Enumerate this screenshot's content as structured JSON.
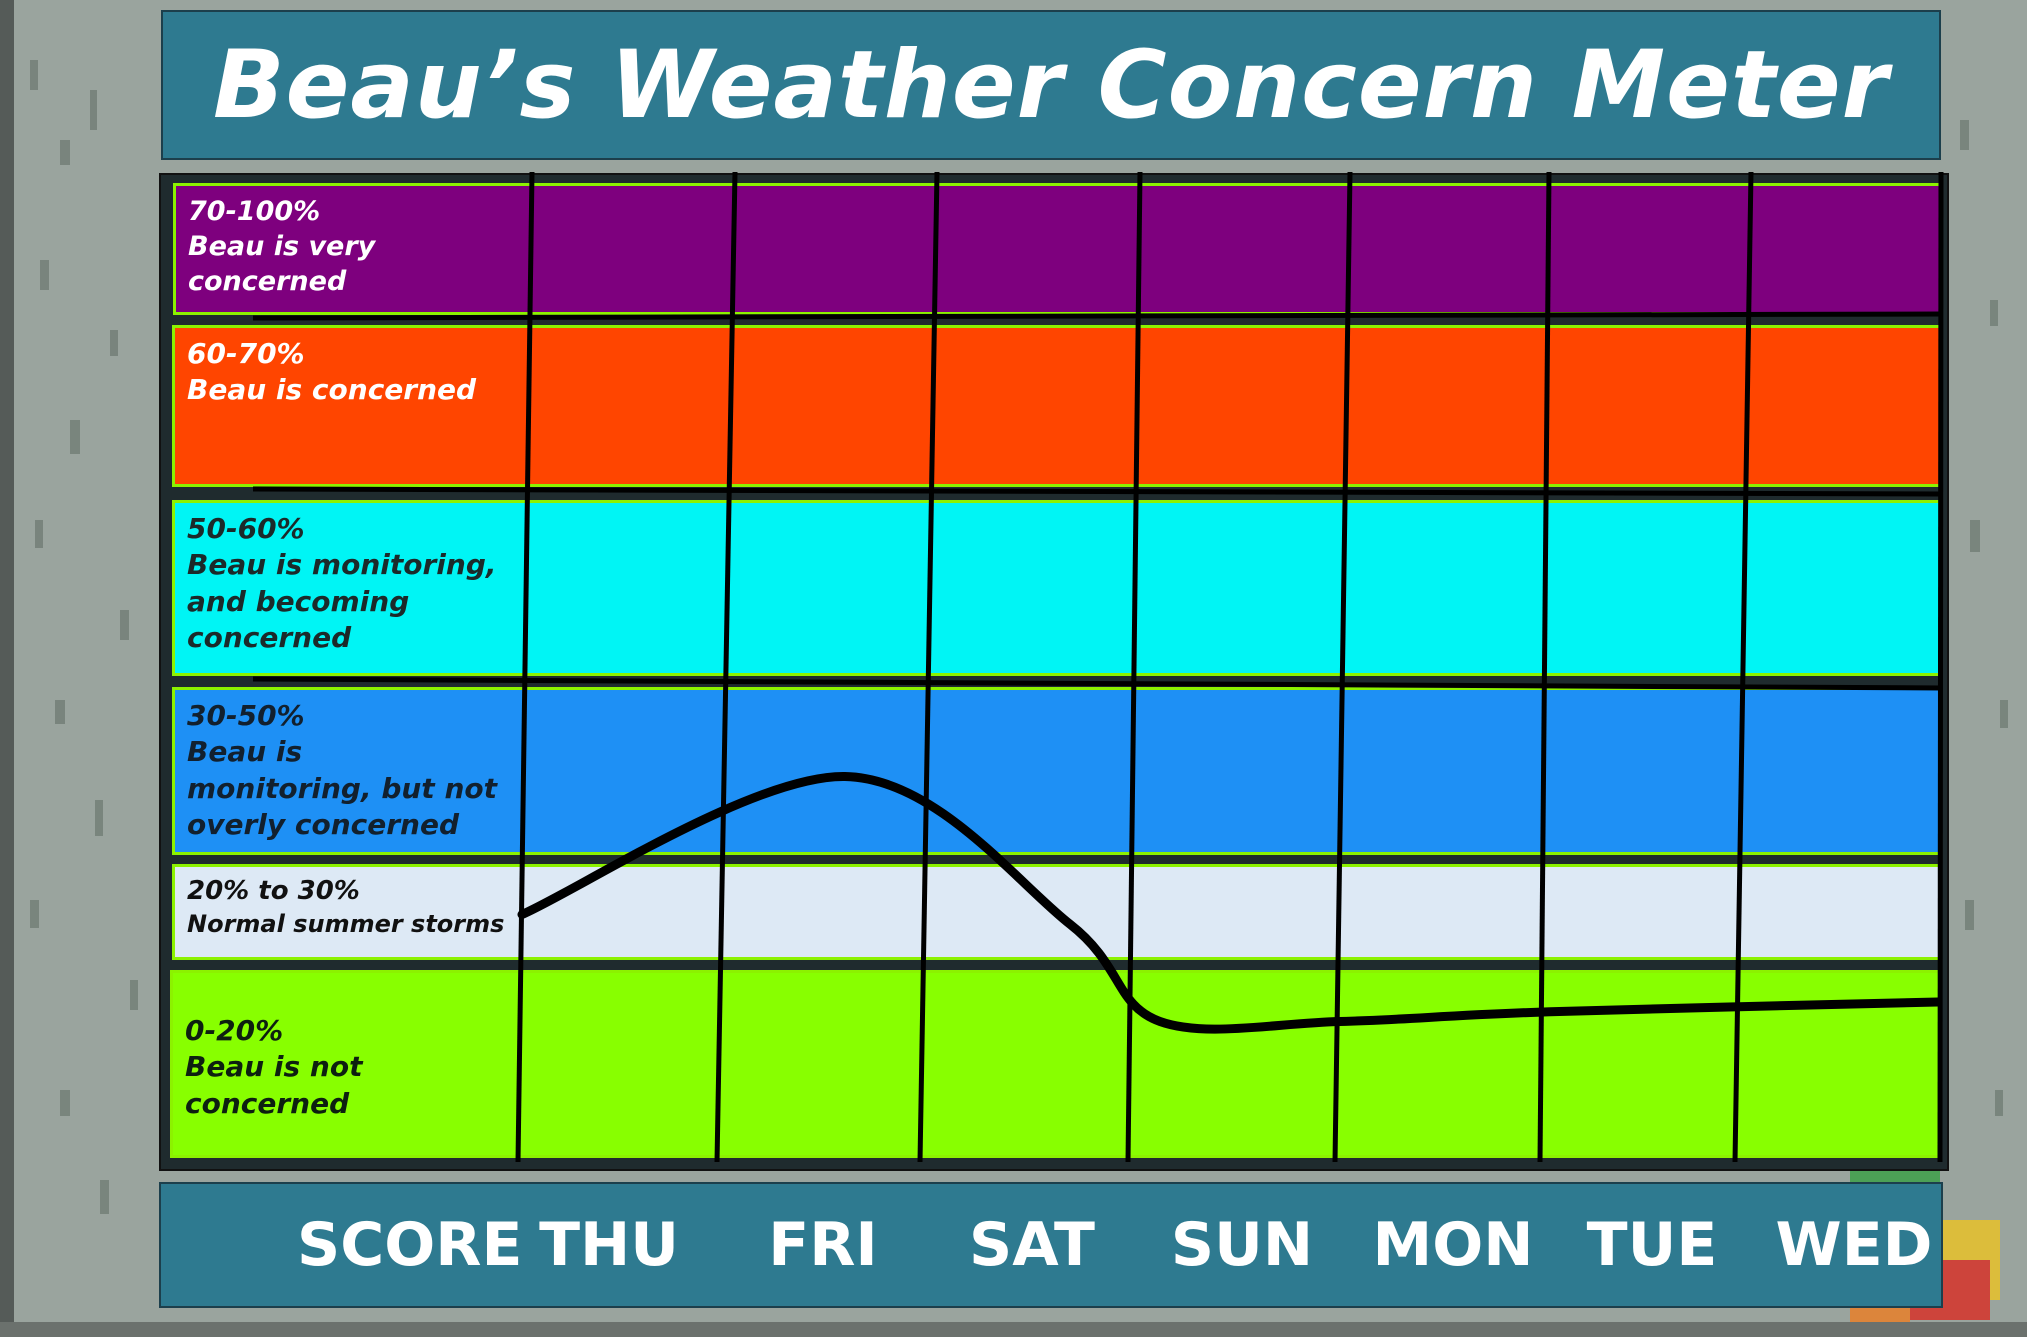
{
  "chart_data": {
    "type": "line",
    "title": "Beau’s Weather Concern Meter",
    "x_header": "SCORE",
    "categories": [
      "THU",
      "FRI",
      "SAT",
      "SUN",
      "MON",
      "TUE",
      "WED"
    ],
    "bands": [
      {
        "range": "70-100%",
        "text": "Beau is very\nconcerned",
        "color": "#7e007e",
        "text_color": "#ffffff"
      },
      {
        "range": "60-70%",
        "text": "Beau is concerned",
        "color": "#ff4500",
        "text_color": "#ffffff"
      },
      {
        "range": "50-60%",
        "text": "Beau is monitoring,\nand becoming\nconcerned",
        "color": "#00f5f5",
        "text_color": "#1b2a2a"
      },
      {
        "range": "30-50%",
        "text": "Beau is\nmonitoring, but  not\noverly  concerned",
        "color": "#1e90f5",
        "text_color": "#12202e"
      },
      {
        "range": "20% to 30%",
        "text": "Normal summer storms",
        "color": "#dde9f5",
        "text_color": "#111111"
      },
      {
        "range": "0-20%",
        "text": "Beau is not\nconcerned",
        "color": "#88ff00",
        "text_color": "#0d2010"
      }
    ],
    "concern_line": [
      {
        "day": "THU",
        "value": 25
      },
      {
        "day": "FRI",
        "value": 40
      },
      {
        "day": "SAT",
        "value": 24
      },
      {
        "day": "SUN",
        "value": 14
      },
      {
        "day": "MON",
        "value": 14
      },
      {
        "day": "TUE",
        "value": 15
      },
      {
        "day": "WED",
        "value": 16
      }
    ],
    "line_color": "#000000",
    "grid": true
  }
}
